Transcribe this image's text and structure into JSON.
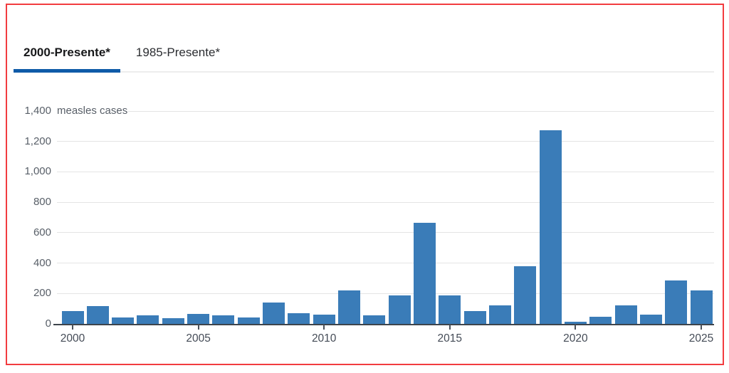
{
  "page": {
    "frame_border_color": "#f23c3f",
    "background_color": "#ffffff"
  },
  "tabs": [
    {
      "label": "2000-Presente*",
      "active": true
    },
    {
      "label": "1985-Presente*",
      "active": false
    }
  ],
  "tab_style": {
    "active_underline_color": "#0f5ba8",
    "baseline_color": "#ededed"
  },
  "chart_data": {
    "type": "bar",
    "title": "",
    "unit_label": "measles cases",
    "categories": [
      2000,
      2001,
      2002,
      2003,
      2004,
      2005,
      2006,
      2007,
      2008,
      2009,
      2010,
      2011,
      2012,
      2013,
      2014,
      2015,
      2016,
      2017,
      2018,
      2019,
      2020,
      2021,
      2022,
      2023,
      2024,
      2025
    ],
    "values": [
      86,
      116,
      44,
      56,
      37,
      66,
      55,
      43,
      140,
      71,
      63,
      220,
      55,
      187,
      667,
      188,
      86,
      120,
      381,
      1274,
      13,
      49,
      121,
      59,
      285,
      222
    ],
    "ylim": [
      0,
      1400
    ],
    "ytick_step": 200,
    "ytick_labels": [
      "0",
      "200",
      "400",
      "600",
      "800",
      "1,000",
      "1,200",
      "1,400"
    ],
    "xticks": [
      2000,
      2005,
      2010,
      2015,
      2020,
      2025
    ],
    "grid": true,
    "legend": "none",
    "bar_color": "#3a7cb8",
    "gridline_color": "#e4e4e4",
    "axis_line_color": "#3e444c"
  }
}
